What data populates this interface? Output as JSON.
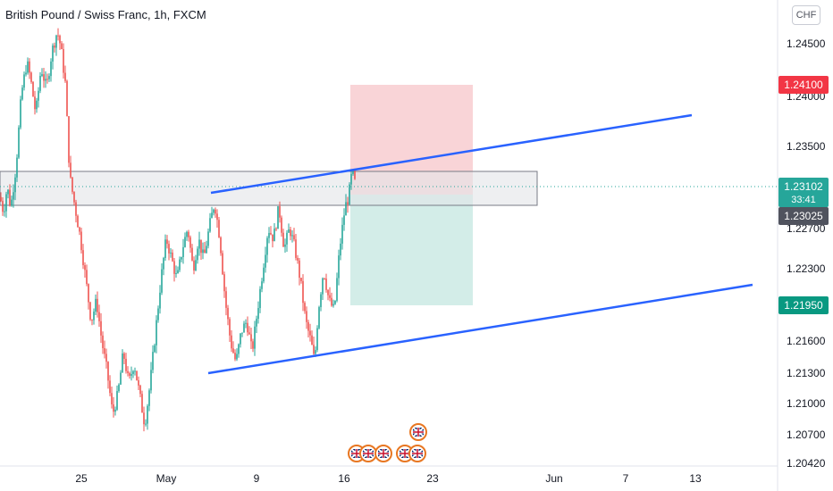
{
  "header": {
    "title": "British Pound / Swiss Franc, 1h, FXCM",
    "currency": "CHF"
  },
  "colors": {
    "up": "#26a69a",
    "down": "#ef5350",
    "trendline": "#2962ff",
    "stop_zone": "#f7c5c9",
    "target_zone": "#c8e9e2",
    "resistance_zone": "#e6e7ea",
    "last_price_line": "#26a69a"
  },
  "chart_data": {
    "type": "candlestick",
    "symbol": "GBPCHF",
    "interval": "1h",
    "y_range": [
      1.2042,
      1.2476
    ],
    "y_ticks": [
      "1.24500",
      "1.24000",
      "1.23500",
      "1.22700",
      "1.22300",
      "1.21600",
      "1.21300",
      "1.21000",
      "1.20700",
      "1.20420"
    ],
    "x_ticks": [
      "25",
      "May",
      "9",
      "16",
      "23",
      "Jun",
      "7",
      "13"
    ],
    "price_labels": [
      {
        "label": "1.24100",
        "role": "stop-loss",
        "color": "#f23645"
      },
      {
        "label": "1.23102",
        "sub": "33:41",
        "role": "last-price",
        "color": "#26a69a"
      },
      {
        "label": "1.23025",
        "role": "entry",
        "color": "#50535e"
      },
      {
        "label": "1.21950",
        "role": "take-profit",
        "color": "#089981"
      }
    ],
    "path": [
      [
        0,
        1.23
      ],
      [
        4,
        1.2285
      ],
      [
        8,
        1.231
      ],
      [
        12,
        1.229
      ],
      [
        18,
        1.233
      ],
      [
        24,
        1.24
      ],
      [
        30,
        1.243
      ],
      [
        34,
        1.2415
      ],
      [
        40,
        1.238
      ],
      [
        46,
        1.2425
      ],
      [
        52,
        1.2405
      ],
      [
        58,
        1.244
      ],
      [
        64,
        1.246
      ],
      [
        68,
        1.2445
      ],
      [
        73,
        1.241
      ],
      [
        78,
        1.232
      ],
      [
        84,
        1.229
      ],
      [
        90,
        1.226
      ],
      [
        96,
        1.222
      ],
      [
        102,
        1.218
      ],
      [
        108,
        1.22
      ],
      [
        114,
        1.216
      ],
      [
        120,
        1.213
      ],
      [
        126,
        1.209
      ],
      [
        132,
        1.211
      ],
      [
        138,
        1.215
      ],
      [
        144,
        1.212
      ],
      [
        150,
        1.214
      ],
      [
        156,
        1.211
      ],
      [
        162,
        1.208
      ],
      [
        168,
        1.212
      ],
      [
        174,
        1.217
      ],
      [
        180,
        1.222
      ],
      [
        186,
        1.226
      ],
      [
        192,
        1.224
      ],
      [
        198,
        1.222
      ],
      [
        204,
        1.225
      ],
      [
        210,
        1.227
      ],
      [
        216,
        1.223
      ],
      [
        222,
        1.226
      ],
      [
        228,
        1.224
      ],
      [
        234,
        1.227
      ],
      [
        240,
        1.2295
      ],
      [
        246,
        1.226
      ],
      [
        252,
        1.22
      ],
      [
        258,
        1.216
      ],
      [
        264,
        1.214
      ],
      [
        270,
        1.217
      ],
      [
        276,
        1.218
      ],
      [
        282,
        1.215
      ],
      [
        288,
        1.219
      ],
      [
        294,
        1.223
      ],
      [
        300,
        1.227
      ],
      [
        306,
        1.226
      ],
      [
        312,
        1.229
      ],
      [
        318,
        1.225
      ],
      [
        324,
        1.227
      ],
      [
        330,
        1.225
      ],
      [
        336,
        1.222
      ],
      [
        342,
        1.218
      ],
      [
        348,
        1.216
      ],
      [
        352,
        1.214
      ],
      [
        356,
        1.219
      ],
      [
        362,
        1.223
      ],
      [
        368,
        1.22
      ],
      [
        374,
        1.219
      ],
      [
        380,
        1.225
      ],
      [
        386,
        1.229
      ],
      [
        390,
        1.23
      ],
      [
        394,
        1.2325
      ],
      [
        398,
        1.231
      ]
    ],
    "annotations": [
      {
        "type": "trendline",
        "name": "upper-channel",
        "from": {
          "x": 0,
          "y": 1.2318
        },
        "to": {
          "x": 0,
          "y": 1.238
        }
      },
      {
        "type": "trendline",
        "name": "lower-channel",
        "from": {
          "x": 0,
          "y": 1.2132
        },
        "to": {
          "x": 0,
          "y": 1.221
        }
      },
      {
        "type": "zone",
        "name": "resistance",
        "y": [
          1.2292,
          1.2325
        ]
      },
      {
        "type": "zone",
        "name": "stop-loss",
        "y": [
          1.2303,
          1.241
        ]
      },
      {
        "type": "zone",
        "name": "take-profit",
        "y": [
          1.2195,
          1.2303
        ]
      }
    ]
  }
}
